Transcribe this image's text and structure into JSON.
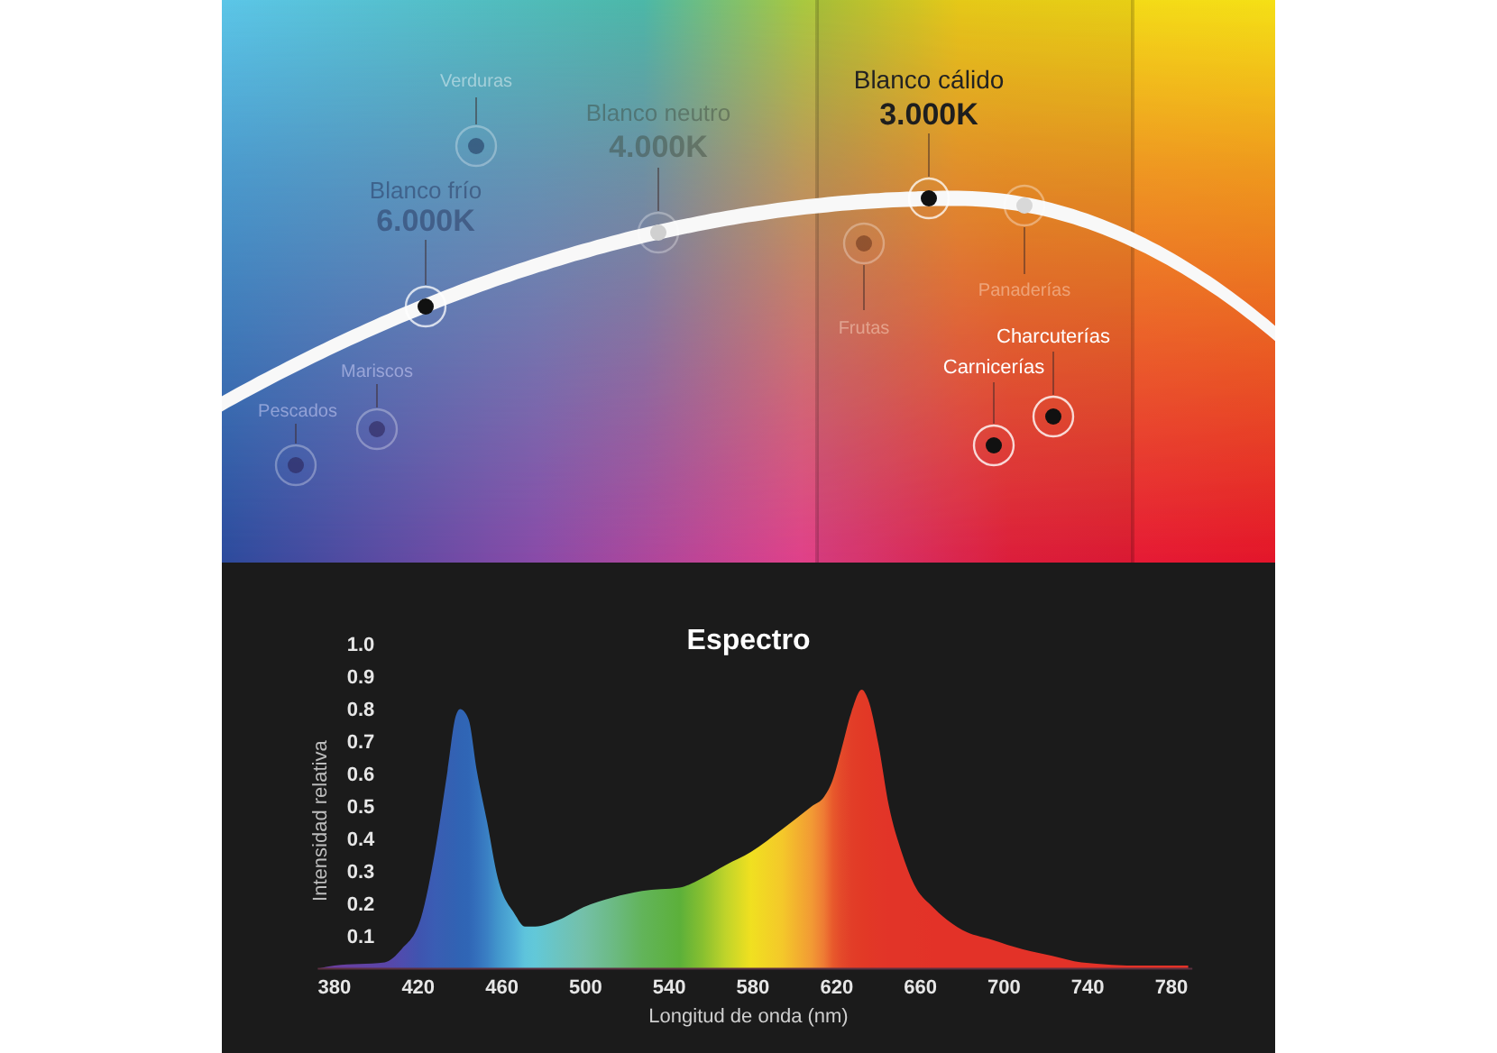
{
  "chart_data": [
    {
      "type": "other",
      "annotations": [
        "Verduras",
        "Blanco neutro",
        "4.000K",
        "Blanco frío",
        "6.000K",
        "Blanco cálido",
        "3.000K",
        "Mariscos",
        "Pescados",
        "Frutas",
        "Panaderías",
        "Charcuterías",
        "Carnicerías"
      ]
    },
    {
      "type": "area",
      "title": "Espectro",
      "xlabel": "Longitud de onda (nm)",
      "ylabel": "Intensidad relativa",
      "x": [
        372,
        380,
        404,
        412,
        421,
        428,
        434,
        438,
        440,
        444,
        448,
        453,
        458,
        466,
        471,
        476,
        487,
        499,
        513,
        527,
        545,
        556,
        567,
        579,
        594,
        608,
        614,
        618,
        622,
        627,
        632,
        635,
        640,
        645,
        651,
        657,
        666,
        680,
        694,
        709,
        723,
        737,
        766,
        788
      ],
      "series": [
        {
          "values": [
            0,
            0.01,
            0.02,
            0.06,
            0.15,
            0.36,
            0.61,
            0.78,
            0.8,
            0.77,
            0.61,
            0.45,
            0.28,
            0.17,
            0.13,
            0.13,
            0.15,
            0.19,
            0.22,
            0.24,
            0.25,
            0.28,
            0.32,
            0.36,
            0.43,
            0.5,
            0.53,
            0.58,
            0.67,
            0.79,
            0.86,
            0.83,
            0.69,
            0.5,
            0.36,
            0.26,
            0.19,
            0.12,
            0.09,
            0.06,
            0.04,
            0.02,
            0.01,
            0.01
          ],
          "colors": [
            "#6b3fa0",
            "#6b3fa0",
            "#5a45a8",
            "#4f4cae",
            "#3f55b0",
            "#3a5db4",
            "#3560b2",
            "#3262b4",
            "#3064b4",
            "#3066b6",
            "#3470bc",
            "#3a80c4",
            "#4296cc",
            "#52b0d8",
            "#5ec4dc",
            "#62c8d8",
            "#6cc4c0",
            "#74c0a8",
            "#6cba84",
            "#62b45a",
            "#5cb03a",
            "#88c030",
            "#c0d42a",
            "#f0e020",
            "#f4c82a",
            "#f29a34",
            "#ee7a34",
            "#e85a2c",
            "#e44a2a",
            "#e23e28",
            "#e23a26",
            "#e23826",
            "#e23628",
            "#e23428",
            "#e23428",
            "#e23428",
            "#e33228",
            "#e33228",
            "#e33228",
            "#e33228",
            "#e33228",
            "#e33228",
            "#e33228",
            "#e33228"
          ]
        }
      ],
      "xlim": [
        372,
        790
      ],
      "xticks": [
        380,
        420,
        460,
        500,
        540,
        580,
        620,
        660,
        700,
        740,
        780
      ],
      "ylim": [
        0,
        1
      ],
      "yticks": [
        0.1,
        0.2,
        0.3,
        0.4,
        0.5,
        0.6,
        0.7,
        0.8,
        0.9,
        {
          "value": 1,
          "label": "1.0"
        }
      ]
    }
  ]
}
